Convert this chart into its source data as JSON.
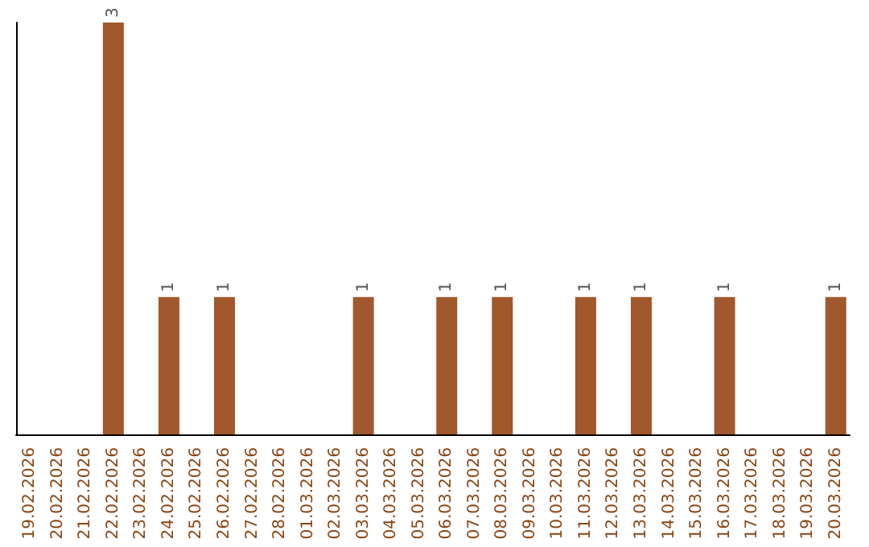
{
  "chart_data": {
    "type": "bar",
    "categories": [
      "19.02.2026",
      "20.02.2026",
      "21.02.2026",
      "22.02.2026",
      "23.02.2026",
      "24.02.2026",
      "25.02.2026",
      "26.02.2026",
      "27.02.2026",
      "28.02.2026",
      "01.03.2026",
      "02.03.2026",
      "03.03.2026",
      "04.03.2026",
      "05.03.2026",
      "06.03.2026",
      "07.03.2026",
      "08.03.2026",
      "09.03.2026",
      "10.03.2026",
      "11.03.2026",
      "12.03.2026",
      "13.03.2026",
      "14.03.2026",
      "15.03.2026",
      "16.03.2026",
      "17.03.2026",
      "18.03.2026",
      "19.03.2026",
      "20.03.2026"
    ],
    "values": [
      0,
      0,
      0,
      3,
      0,
      1,
      0,
      1,
      0,
      0,
      0,
      0,
      1,
      0,
      0,
      1,
      0,
      1,
      0,
      0,
      1,
      0,
      1,
      0,
      0,
      1,
      0,
      0,
      0,
      1
    ],
    "value_labels": [
      null,
      null,
      null,
      "3",
      null,
      "1",
      null,
      "1",
      null,
      null,
      null,
      null,
      "1",
      null,
      null,
      "1",
      null,
      "1",
      null,
      null,
      "1",
      null,
      "1",
      null,
      null,
      "1",
      null,
      null,
      null,
      "1"
    ],
    "color": "#a0582c",
    "tick_labels": "x",
    "grid": false
  }
}
